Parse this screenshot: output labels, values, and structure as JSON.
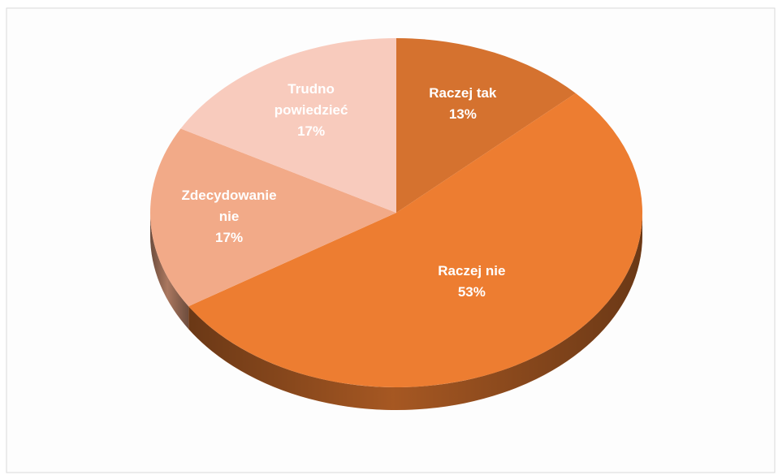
{
  "chart_data": {
    "type": "pie",
    "categories": [
      "Raczej tak",
      "Raczej nie",
      "Zdecydowanie nie",
      "Trudno powiedzieć"
    ],
    "values": [
      13,
      53,
      17,
      17
    ],
    "value_labels": [
      "13%",
      "53%",
      "17%",
      "17%"
    ],
    "colors": [
      "#d5722f",
      "#ed7d31",
      "#f2aa88",
      "#f8cbbd"
    ]
  }
}
